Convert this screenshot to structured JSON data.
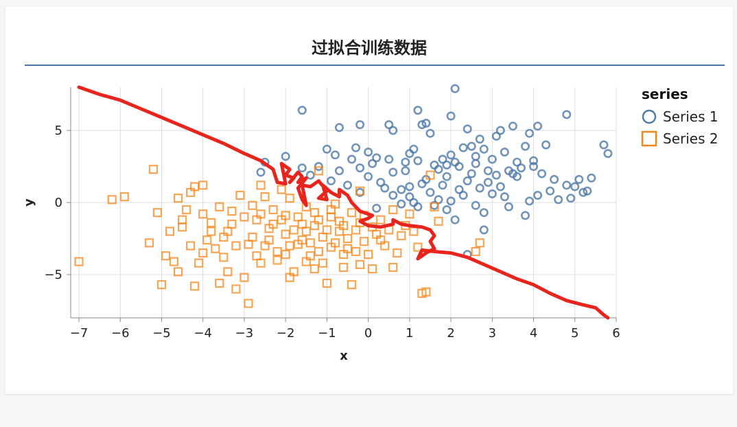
{
  "chart_data": {
    "type": "scatter",
    "title": "过拟合训练数据",
    "xlabel": "x",
    "ylabel": "y",
    "xlim": [
      -7.2,
      6.0
    ],
    "ylim": [
      -8,
      8
    ],
    "xticks": [
      -7,
      -6,
      -5,
      -4,
      -3,
      -2,
      -1,
      0,
      1,
      2,
      3,
      4,
      5,
      6
    ],
    "yticks": [
      -5,
      0,
      5
    ],
    "grid": true,
    "legend": {
      "title": "series",
      "position": "right"
    },
    "series": [
      {
        "name": "Series 1",
        "marker": "circle",
        "color": "#4c78a8",
        "points": [
          [
            -2.5,
            2.8
          ],
          [
            -2.6,
            2.1
          ],
          [
            -2.0,
            3.2
          ],
          [
            -1.6,
            6.4
          ],
          [
            -1.6,
            2.4
          ],
          [
            -1.2,
            2.5
          ],
          [
            -1.0,
            3.7
          ],
          [
            -0.8,
            3.3
          ],
          [
            -0.7,
            2.2
          ],
          [
            -0.7,
            5.2
          ],
          [
            -0.4,
            3.0
          ],
          [
            -0.2,
            2.4
          ],
          [
            -0.2,
            5.4
          ],
          [
            -0.3,
            3.8
          ],
          [
            0.0,
            3.5
          ],
          [
            0.1,
            2.7
          ],
          [
            0.2,
            3.1
          ],
          [
            0.5,
            3.0
          ],
          [
            0.5,
            5.4
          ],
          [
            0.6,
            5.0
          ],
          [
            0.9,
            2.8
          ],
          [
            0.9,
            2.2
          ],
          [
            1.0,
            3.4
          ],
          [
            1.1,
            3.7
          ],
          [
            1.2,
            2.9
          ],
          [
            1.2,
            6.4
          ],
          [
            1.3,
            5.4
          ],
          [
            1.4,
            5.5
          ],
          [
            1.5,
            4.8
          ],
          [
            1.6,
            2.6
          ],
          [
            1.7,
            2.3
          ],
          [
            1.8,
            3.0
          ],
          [
            1.9,
            1.8
          ],
          [
            2.0,
            6.0
          ],
          [
            2.0,
            3.3
          ],
          [
            2.1,
            7.9
          ],
          [
            2.1,
            2.8
          ],
          [
            2.2,
            2.5
          ],
          [
            2.3,
            3.8
          ],
          [
            2.4,
            5.1
          ],
          [
            2.5,
            3.9
          ],
          [
            2.6,
            2.7
          ],
          [
            2.7,
            4.4
          ],
          [
            2.8,
            3.7
          ],
          [
            2.9,
            2.2
          ],
          [
            3.0,
            3.0
          ],
          [
            3.1,
            4.6
          ],
          [
            3.2,
            5.0
          ],
          [
            3.3,
            3.5
          ],
          [
            3.4,
            2.2
          ],
          [
            3.5,
            5.3
          ],
          [
            3.6,
            2.8
          ],
          [
            3.7,
            2.4
          ],
          [
            3.8,
            3.9
          ],
          [
            3.9,
            4.8
          ],
          [
            4.0,
            2.5
          ],
          [
            4.0,
            2.9
          ],
          [
            4.1,
            5.3
          ],
          [
            4.2,
            2.0
          ],
          [
            4.3,
            4.0
          ],
          [
            4.4,
            0.8
          ],
          [
            4.5,
            1.6
          ],
          [
            4.6,
            0.2
          ],
          [
            4.8,
            6.1
          ],
          [
            4.8,
            1.2
          ],
          [
            4.9,
            0.3
          ],
          [
            5.0,
            1.1
          ],
          [
            5.1,
            1.6
          ],
          [
            5.2,
            0.7
          ],
          [
            5.3,
            0.8
          ],
          [
            5.4,
            1.7
          ],
          [
            5.7,
            4.0
          ],
          [
            5.8,
            3.4
          ],
          [
            0.3,
            1.4
          ],
          [
            0.4,
            1.0
          ],
          [
            0.6,
            0.5
          ],
          [
            0.8,
            0.9
          ],
          [
            1.0,
            0.4
          ],
          [
            1.1,
            0.0
          ],
          [
            1.3,
            1.3
          ],
          [
            1.5,
            0.7
          ],
          [
            1.7,
            0.2
          ],
          [
            1.9,
            -0.5
          ],
          [
            2.1,
            -1.2
          ],
          [
            2.2,
            0.9
          ],
          [
            2.4,
            1.5
          ],
          [
            2.6,
            -0.2
          ],
          [
            2.8,
            -0.7
          ],
          [
            3.0,
            0.6
          ],
          [
            3.2,
            1.1
          ],
          [
            3.4,
            -0.3
          ],
          [
            3.6,
            1.8
          ],
          [
            3.8,
            -0.9
          ],
          [
            3.9,
            0.1
          ],
          [
            4.1,
            0.5
          ],
          [
            2.4,
            -3.6
          ],
          [
            2.8,
            -1.9
          ],
          [
            -0.5,
            1.2
          ],
          [
            -0.2,
            0.7
          ],
          [
            0.2,
            -0.4
          ],
          [
            0.8,
            -0.1
          ],
          [
            1.2,
            -0.3
          ],
          [
            1.6,
            -0.2
          ],
          [
            2.0,
            0.1
          ],
          [
            2.3,
            0.5
          ],
          [
            2.7,
            1.0
          ],
          [
            3.1,
            1.9
          ],
          [
            3.5,
            2.0
          ],
          [
            0.0,
            1.8
          ],
          [
            1.4,
            1.6
          ],
          [
            1.8,
            1.2
          ],
          [
            2.5,
            2.0
          ],
          [
            2.9,
            1.4
          ],
          [
            3.3,
            0.4
          ],
          [
            1.0,
            1.1
          ],
          [
            1.9,
            2.6
          ],
          [
            2.6,
            3.2
          ],
          [
            0.6,
            2.1
          ],
          [
            -1.4,
            1.9
          ],
          [
            -0.9,
            1.5
          ]
        ]
      },
      {
        "name": "Series 2",
        "marker": "square",
        "color": "#f58518",
        "points": [
          [
            -7.0,
            -4.1
          ],
          [
            -6.2,
            0.2
          ],
          [
            -5.9,
            0.4
          ],
          [
            -5.3,
            -2.8
          ],
          [
            -5.2,
            2.3
          ],
          [
            -5.0,
            -5.7
          ],
          [
            -4.9,
            -3.7
          ],
          [
            -4.7,
            -4.1
          ],
          [
            -4.6,
            -4.8
          ],
          [
            -4.5,
            -1.7
          ],
          [
            -4.4,
            -0.5
          ],
          [
            -4.3,
            0.7
          ],
          [
            -4.2,
            1.1
          ],
          [
            -4.2,
            -5.8
          ],
          [
            -4.1,
            -4.2
          ],
          [
            -4.0,
            1.2
          ],
          [
            -3.8,
            -2.0
          ],
          [
            -3.7,
            -3.2
          ],
          [
            -3.6,
            -5.6
          ],
          [
            -3.5,
            -3.8
          ],
          [
            -3.4,
            -4.8
          ],
          [
            -3.3,
            -1.5
          ],
          [
            -3.2,
            -6.0
          ],
          [
            -3.1,
            0.5
          ],
          [
            -3.0,
            -5.2
          ],
          [
            -2.9,
            -7.0
          ],
          [
            -2.8,
            -2.4
          ],
          [
            -2.7,
            -1.2
          ],
          [
            -2.6,
            -4.2
          ],
          [
            -2.5,
            -3.0
          ],
          [
            -2.4,
            -1.8
          ],
          [
            -2.3,
            -0.5
          ],
          [
            -2.2,
            -3.4
          ],
          [
            -2.1,
            0.9
          ],
          [
            -2.0,
            -2.2
          ],
          [
            -1.9,
            -5.2
          ],
          [
            -1.8,
            -4.8
          ],
          [
            -1.7,
            -1.0
          ],
          [
            -1.6,
            -2.6
          ],
          [
            -1.5,
            -0.3
          ],
          [
            -1.4,
            -3.7
          ],
          [
            -1.3,
            -1.6
          ],
          [
            -1.2,
            2.2
          ],
          [
            -1.1,
            -4.2
          ],
          [
            -1.0,
            -5.6
          ],
          [
            -0.9,
            -0.5
          ],
          [
            -0.8,
            -2.8
          ],
          [
            -0.7,
            -1.3
          ],
          [
            -0.6,
            -4.5
          ],
          [
            -0.5,
            -3.2
          ],
          [
            -0.4,
            -5.7
          ],
          [
            -0.3,
            -1.9
          ],
          [
            -0.2,
            -4.3
          ],
          [
            -0.1,
            -0.9
          ],
          [
            0.0,
            -3.6
          ],
          [
            0.1,
            -4.6
          ],
          [
            0.2,
            -2.2
          ],
          [
            0.3,
            -1.2
          ],
          [
            0.4,
            -3.0
          ],
          [
            0.6,
            -4.5
          ],
          [
            0.8,
            -2.3
          ],
          [
            1.0,
            -0.8
          ],
          [
            1.2,
            -3.1
          ],
          [
            1.3,
            -6.3
          ],
          [
            1.4,
            -6.2
          ],
          [
            1.5,
            1.9
          ],
          [
            1.6,
            -0.3
          ],
          [
            1.7,
            -1.3
          ],
          [
            2.6,
            -3.4
          ],
          [
            2.7,
            -2.8
          ],
          [
            -5.1,
            -0.7
          ],
          [
            -4.8,
            -2.0
          ],
          [
            -4.5,
            -1.2
          ],
          [
            -4.0,
            -0.8
          ],
          [
            -3.9,
            -2.6
          ],
          [
            -3.6,
            -0.3
          ],
          [
            -3.4,
            -2.0
          ],
          [
            -3.2,
            -3.0
          ],
          [
            -3.0,
            -1.0
          ],
          [
            -2.9,
            -2.9
          ],
          [
            -2.7,
            -3.7
          ],
          [
            -2.6,
            -0.8
          ],
          [
            -2.4,
            -2.6
          ],
          [
            -2.3,
            -1.5
          ],
          [
            -2.2,
            -4.0
          ],
          [
            -2.0,
            -0.9
          ],
          [
            -1.9,
            -3.0
          ],
          [
            -1.8,
            -1.9
          ],
          [
            -1.7,
            -2.9
          ],
          [
            -1.6,
            -1.5
          ],
          [
            -1.5,
            -2.0
          ],
          [
            -1.4,
            -2.8
          ],
          [
            -1.3,
            -0.7
          ],
          [
            -1.2,
            -1.2
          ],
          [
            -1.1,
            -2.4
          ],
          [
            -1.0,
            -1.9
          ],
          [
            -0.9,
            -3.1
          ],
          [
            -0.8,
            -0.1
          ],
          [
            -0.7,
            -2.0
          ],
          [
            -0.6,
            -1.6
          ],
          [
            -0.5,
            -2.5
          ],
          [
            -0.4,
            -0.7
          ],
          [
            -0.3,
            -3.4
          ],
          [
            -0.2,
            -1.4
          ],
          [
            -0.1,
            -2.7
          ],
          [
            0.1,
            -1.7
          ],
          [
            0.3,
            -2.6
          ],
          [
            0.5,
            -1.9
          ],
          [
            0.7,
            -3.5
          ],
          [
            0.9,
            -1.6
          ],
          [
            -4.6,
            0.3
          ],
          [
            -4.3,
            -3.0
          ],
          [
            -3.8,
            -1.4
          ],
          [
            -3.5,
            -2.4
          ],
          [
            -2.8,
            -0.2
          ],
          [
            -2.5,
            0.4
          ],
          [
            -2.1,
            -1.2
          ],
          [
            -1.9,
            0.3
          ],
          [
            -1.5,
            -4.1
          ],
          [
            -1.2,
            -3.4
          ],
          [
            -0.9,
            -1.0
          ],
          [
            -0.6,
            -3.6
          ],
          [
            -0.2,
            0.8
          ],
          [
            -2.6,
            1.2
          ],
          [
            -3.3,
            -0.6
          ],
          [
            -4.0,
            -3.5
          ],
          [
            -2.0,
            -3.6
          ],
          [
            -1.3,
            -4.6
          ],
          [
            0.6,
            -0.5
          ],
          [
            1.1,
            -2.0
          ]
        ]
      }
    ],
    "annotation": {
      "label": "",
      "color": "#e8241c",
      "path": [
        [
          -7.0,
          8.0
        ],
        [
          -6.5,
          7.5
        ],
        [
          -6.0,
          7.1
        ],
        [
          -5.5,
          6.5
        ],
        [
          -5.0,
          5.9
        ],
        [
          -4.5,
          5.3
        ],
        [
          -4.0,
          4.7
        ],
        [
          -3.5,
          4.1
        ],
        [
          -3.0,
          3.4
        ],
        [
          -2.6,
          2.9
        ],
        [
          -2.3,
          2.3
        ],
        [
          -2.2,
          1.4
        ],
        [
          -2.0,
          1.3
        ],
        [
          -2.1,
          2.7
        ],
        [
          -1.9,
          2.3
        ],
        [
          -2.0,
          1.9
        ],
        [
          -1.8,
          1.7
        ],
        [
          -1.9,
          1.4
        ],
        [
          -1.7,
          2.1
        ],
        [
          -1.6,
          1.8
        ],
        [
          -1.7,
          1.4
        ],
        [
          -1.5,
          1.7
        ],
        [
          -1.7,
          1.0
        ],
        [
          -1.6,
          0.2
        ],
        [
          -1.5,
          -0.2
        ],
        [
          -1.6,
          1.2
        ],
        [
          -1.4,
          1.1
        ],
        [
          -1.2,
          1.5
        ],
        [
          -1.0,
          0.8
        ],
        [
          -1.2,
          0.3
        ],
        [
          -1.0,
          0.2
        ],
        [
          -1.1,
          1.2
        ],
        [
          -0.9,
          0.7
        ],
        [
          -0.7,
          0.4
        ],
        [
          -0.7,
          0.9
        ],
        [
          -0.5,
          0.5
        ],
        [
          -0.4,
          0.0
        ],
        [
          -0.2,
          -0.6
        ],
        [
          0.1,
          -0.9
        ],
        [
          0.0,
          -1.1
        ],
        [
          -0.2,
          -1.3
        ],
        [
          0.0,
          -1.6
        ],
        [
          0.3,
          -1.7
        ],
        [
          0.6,
          -1.5
        ],
        [
          0.6,
          -1.2
        ],
        [
          0.8,
          -1.5
        ],
        [
          1.0,
          -1.6
        ],
        [
          1.3,
          -1.7
        ],
        [
          1.5,
          -1.9
        ],
        [
          1.6,
          -2.3
        ],
        [
          1.5,
          -2.7
        ],
        [
          1.6,
          -3.2
        ],
        [
          1.4,
          -3.5
        ],
        [
          1.2,
          -3.9
        ],
        [
          1.3,
          -3.3
        ],
        [
          1.6,
          -3.4
        ],
        [
          2.0,
          -3.5
        ],
        [
          2.4,
          -3.8
        ],
        [
          2.8,
          -4.3
        ],
        [
          3.2,
          -4.8
        ],
        [
          3.6,
          -5.3
        ],
        [
          4.0,
          -5.7
        ],
        [
          4.4,
          -6.3
        ],
        [
          4.8,
          -6.8
        ],
        [
          5.2,
          -7.1
        ],
        [
          5.5,
          -7.3
        ],
        [
          5.7,
          -7.8
        ],
        [
          5.8,
          -8.0
        ]
      ]
    }
  }
}
